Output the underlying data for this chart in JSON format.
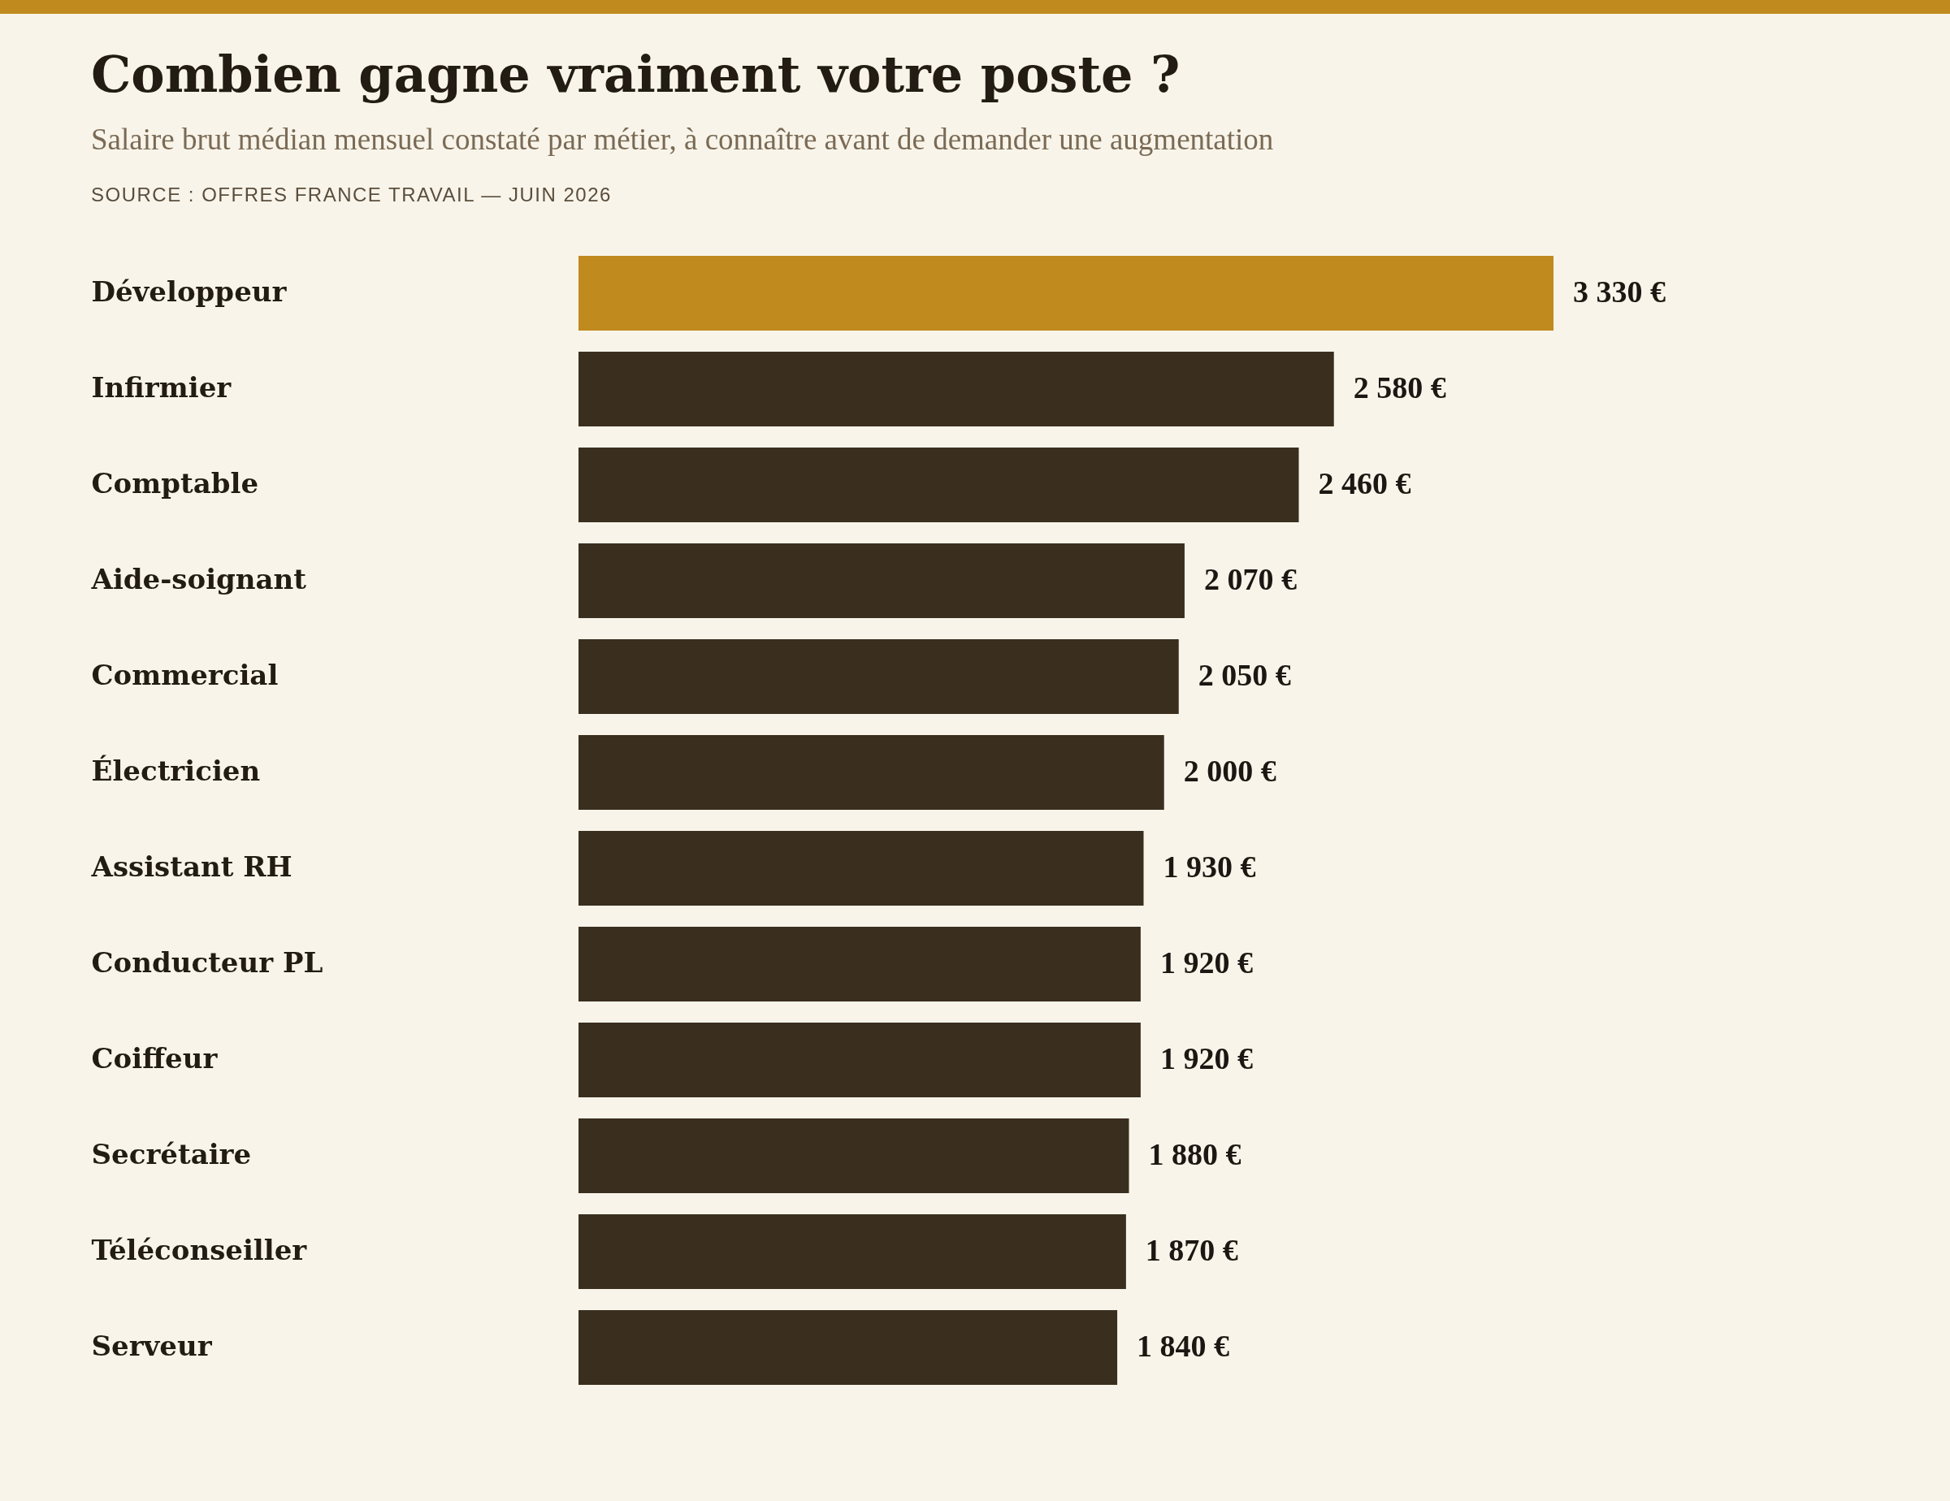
{
  "chart_data": {
    "type": "bar",
    "orientation": "horizontal",
    "title": "Combien gagne vraiment votre poste ?",
    "subtitle": "Salaire brut médian mensuel constaté par métier, à connaître avant de demander une augmentation",
    "annotations": [
      "SOURCE : OFFRES FRANCE TRAVAIL — JUIN 2026"
    ],
    "categories": [
      "Développeur",
      "Infirmier",
      "Comptable",
      "Aide-soignant",
      "Commercial",
      "Électricien",
      "Assistant RH",
      "Conducteur PL",
      "Coiffeur",
      "Secrétaire",
      "Téléconseiller",
      "Serveur"
    ],
    "values": [
      3330,
      2580,
      2460,
      2070,
      2050,
      2000,
      1930,
      1920,
      1920,
      1880,
      1870,
      1840
    ],
    "value_labels": [
      "3 330 €",
      "2 580 €",
      "2 460 €",
      "2 070 €",
      "2 050 €",
      "2 000 €",
      "1 930 €",
      "1 920 €",
      "1 920 €",
      "1 880 €",
      "1 870 €",
      "1 840 €"
    ],
    "colors": [
      "#c08a1e",
      "#3a2e1e",
      "#3a2e1e",
      "#3a2e1e",
      "#3a2e1e",
      "#3a2e1e",
      "#3a2e1e",
      "#3a2e1e",
      "#3a2e1e",
      "#3a2e1e",
      "#3a2e1e",
      "#3a2e1e"
    ]
  }
}
